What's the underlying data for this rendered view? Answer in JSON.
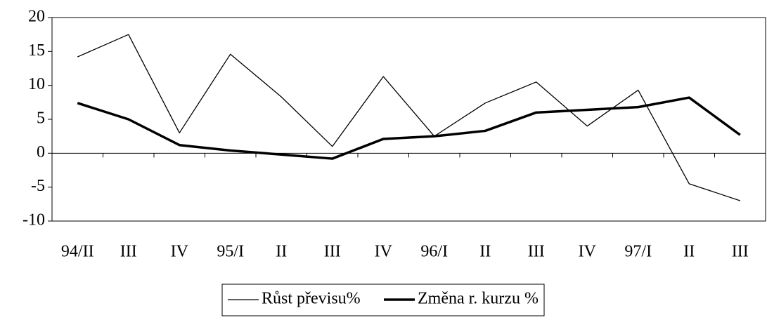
{
  "chart_data": {
    "type": "line",
    "categories": [
      "94/II",
      "III",
      "IV",
      "95/I",
      "II",
      "III",
      "IV",
      "96/I",
      "II",
      "III",
      "IV",
      "97/I",
      "II",
      "III"
    ],
    "series": [
      {
        "name": "Růst převisu%",
        "color": "#000000",
        "values": [
          14.2,
          17.5,
          3,
          14.6,
          8.3,
          1,
          11.3,
          2.5,
          7.4,
          10.5,
          4,
          9.3,
          -4.5,
          -7
        ]
      },
      {
        "name": "Změna r. kurzu %",
        "color": "#000000",
        "values": [
          7.4,
          5,
          1.2,
          0.4,
          -0.2,
          -0.8,
          2.1,
          2.5,
          3.3,
          6,
          6.4,
          6.8,
          8.2,
          2.7
        ]
      }
    ],
    "ylim": [
      -10,
      20
    ],
    "yticks": [
      -10,
      -5,
      0,
      5,
      10,
      15,
      20
    ],
    "grid": false,
    "legend": "bottom"
  }
}
